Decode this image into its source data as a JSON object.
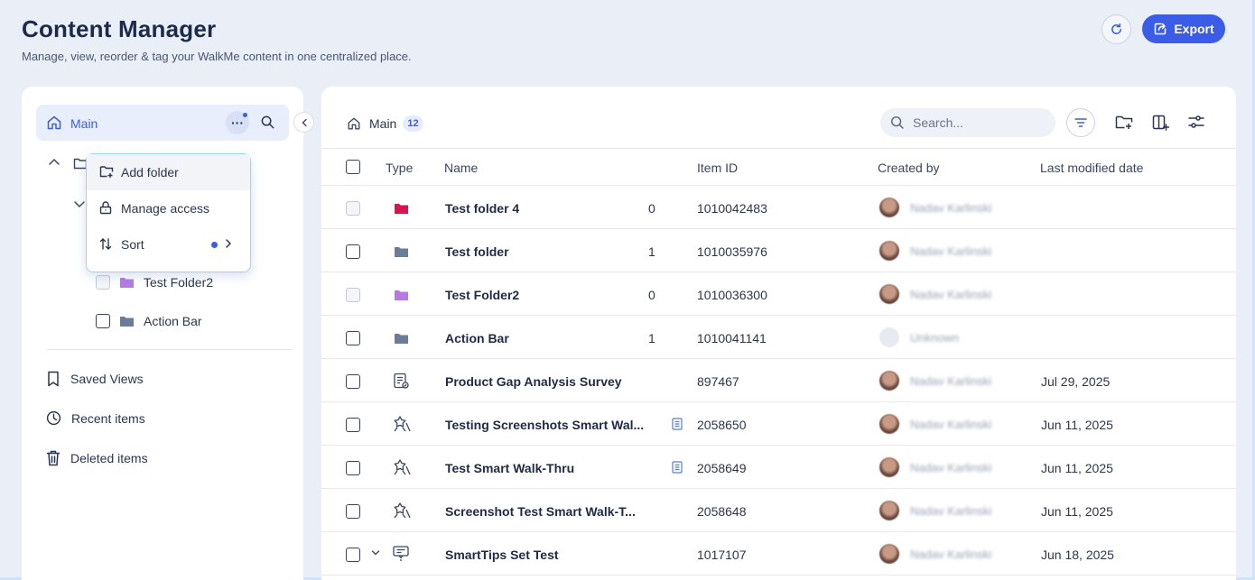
{
  "header": {
    "title": "Content Manager",
    "subtitle": "Manage, view, reorder & tag your WalkMe content in one centralized place.",
    "export_label": "Export"
  },
  "sidebar": {
    "main_label": "Main",
    "tree": [
      {
        "name": "Test Folder2",
        "color": "#b57be0"
      },
      {
        "name": "Action Bar",
        "color": "#6b7c99"
      }
    ],
    "links": [
      {
        "label": "Saved Views",
        "icon": "bookmark-icon"
      },
      {
        "label": "Recent items",
        "icon": "clock-icon"
      },
      {
        "label": "Deleted items",
        "icon": "trash-icon"
      }
    ],
    "menu": {
      "add_folder": "Add folder",
      "manage_access": "Manage access",
      "sort": "Sort"
    }
  },
  "main": {
    "breadcrumb": {
      "label": "Main",
      "count": "12"
    },
    "search_placeholder": "Search...",
    "columns": {
      "type": "Type",
      "name": "Name",
      "item_id": "Item ID",
      "created_by": "Created by",
      "last_modified": "Last modified date"
    },
    "rows": [
      {
        "type": "folder",
        "color": "#d6154f",
        "name": "Test folder 4",
        "count": "0",
        "id": "1010042483",
        "creator": "Nadav Karlinski",
        "date": "",
        "dim": true
      },
      {
        "type": "folder",
        "color": "#6b7c99",
        "name": "Test folder",
        "count": "1",
        "id": "1010035976",
        "creator": "Nadav Karlinski",
        "date": "",
        "dim": false
      },
      {
        "type": "folder",
        "color": "#b57be0",
        "name": "Test Folder2",
        "count": "0",
        "id": "1010036300",
        "creator": "Nadav Karlinski",
        "date": "",
        "dim": true
      },
      {
        "type": "folder",
        "color": "#6b7c99",
        "name": "Action Bar",
        "count": "1",
        "id": "1010041141",
        "creator": "Unknown",
        "date": "",
        "dim": false
      },
      {
        "type": "survey",
        "name": "Product Gap Analysis Survey",
        "count": "",
        "id": "897467",
        "creator": "Nadav Karlinski",
        "date": "Jul 29, 2025",
        "dim": false
      },
      {
        "type": "walkthru",
        "name": "Testing Screenshots Smart Wal...",
        "count": "",
        "doc": true,
        "id": "2058650",
        "creator": "Nadav Karlinski",
        "date": "Jun 11, 2025",
        "dim": false
      },
      {
        "type": "walkthru",
        "name": "Test Smart Walk-Thru",
        "count": "",
        "doc": true,
        "id": "2058649",
        "creator": "Nadav Karlinski",
        "date": "Jun 11, 2025",
        "dim": false
      },
      {
        "type": "walkthru",
        "name": "Screenshot Test Smart Walk-T...",
        "count": "",
        "id": "2058648",
        "creator": "Nadav Karlinski",
        "date": "Jun 11, 2025",
        "dim": false
      },
      {
        "type": "smarttip",
        "name": "SmartTips Set Test",
        "count": "",
        "expand": true,
        "id": "1017107",
        "creator": "Nadav Karlinski",
        "date": "Jun 18, 2025",
        "dim": false
      }
    ]
  }
}
